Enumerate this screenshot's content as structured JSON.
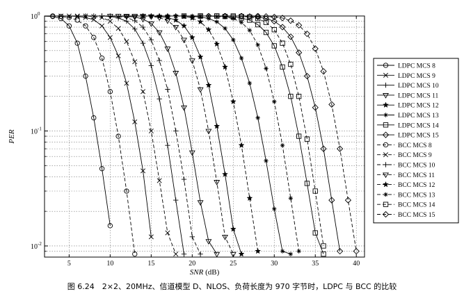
{
  "caption": "图 6.24　2×2、20MHz、信道模型 D、NLOS、负荷长度为 970 字节时，LDPC 与 BCC 的比较",
  "chart_data": {
    "type": "line",
    "xlabel": "SNR (dB)",
    "ylabel": "PER",
    "xlim": [
      2,
      41
    ],
    "ylim": [
      0.008,
      1
    ],
    "yscale": "log",
    "xticks": [
      5,
      10,
      15,
      20,
      25,
      30,
      35,
      40
    ],
    "xtick_labels": [
      "5",
      "10",
      "15",
      "20",
      "25",
      "30",
      "35",
      "40"
    ],
    "yticks": [
      0.01,
      0.1,
      1
    ],
    "ytick_labels": [
      "10",
      "10",
      "10"
    ],
    "ytick_exponents": [
      "-2",
      "-1",
      "0"
    ],
    "grid": true,
    "legend": "right",
    "series": [
      {
        "name": "LDPC MCS 8",
        "marker": "circle",
        "dash": "solid",
        "x": [
          1.5,
          3,
          4,
          5,
          6,
          7,
          8,
          9,
          10
        ],
        "y": [
          1,
          0.99,
          0.95,
          0.82,
          0.58,
          0.3,
          0.13,
          0.047,
          0.015
        ]
      },
      {
        "name": "LDPC MCS 9",
        "marker": "x",
        "dash": "solid",
        "x": [
          4,
          5,
          6,
          7,
          8,
          9,
          10,
          11,
          12,
          13,
          14,
          15
        ],
        "y": [
          1,
          1,
          0.99,
          0.97,
          0.93,
          0.82,
          0.65,
          0.45,
          0.26,
          0.12,
          0.045,
          0.012
        ]
      },
      {
        "name": "LDPC MCS 10",
        "marker": "plus",
        "dash": "solid",
        "x": [
          7,
          8,
          9,
          10,
          11,
          12,
          13,
          14,
          15,
          16,
          17,
          18,
          19
        ],
        "y": [
          1,
          1,
          1,
          0.99,
          0.96,
          0.9,
          0.77,
          0.58,
          0.37,
          0.19,
          0.075,
          0.025,
          0.0085
        ]
      },
      {
        "name": "LDPC MCS 11",
        "marker": "tri-down",
        "dash": "solid",
        "x": [
          10,
          11,
          12,
          13,
          14,
          15,
          16,
          17,
          18,
          19,
          20,
          21,
          22,
          23
        ],
        "y": [
          1,
          1,
          0.99,
          0.98,
          0.94,
          0.86,
          0.72,
          0.52,
          0.32,
          0.16,
          0.065,
          0.024,
          0.011,
          0.0085
        ]
      },
      {
        "name": "LDPC MCS 12",
        "marker": "star",
        "dash": "solid",
        "x": [
          14,
          15,
          16,
          17,
          18,
          19,
          20,
          21,
          22,
          23,
          24,
          25,
          26
        ],
        "y": [
          1,
          1,
          0.99,
          0.97,
          0.92,
          0.82,
          0.65,
          0.44,
          0.25,
          0.11,
          0.042,
          0.014,
          0.0085
        ]
      },
      {
        "name": "LDPC MCS 13",
        "marker": "asterisk",
        "dash": "solid",
        "x": [
          17,
          18,
          19,
          20,
          21,
          22,
          23,
          24,
          25,
          26,
          27,
          28,
          29,
          30,
          31,
          32
        ],
        "y": [
          1,
          1,
          1,
          0.99,
          0.98,
          0.95,
          0.89,
          0.78,
          0.62,
          0.43,
          0.26,
          0.13,
          0.055,
          0.021,
          0.009,
          0.0085
        ]
      },
      {
        "name": "LDPC MCS 14",
        "marker": "square",
        "dash": "solid",
        "x": [
          19,
          21,
          23,
          24,
          25,
          26,
          27,
          28,
          29,
          30,
          31,
          32,
          33,
          34,
          35,
          36
        ],
        "y": [
          1,
          1,
          1,
          0.99,
          0.98,
          0.96,
          0.92,
          0.84,
          0.72,
          0.55,
          0.36,
          0.2,
          0.09,
          0.035,
          0.013,
          0.0085
        ]
      },
      {
        "name": "LDPC MCS 15",
        "marker": "diamond",
        "dash": "solid",
        "x": [
          22,
          24,
          26,
          27,
          28,
          29,
          30,
          31,
          32,
          33,
          34,
          35,
          36,
          37,
          38
        ],
        "y": [
          1,
          1,
          1,
          0.99,
          0.98,
          0.95,
          0.9,
          0.8,
          0.66,
          0.48,
          0.3,
          0.16,
          0.07,
          0.025,
          0.009
        ]
      },
      {
        "name": "BCC MCS 8",
        "marker": "circle",
        "dash": "dashed",
        "x": [
          1.5,
          3,
          4,
          5,
          6,
          7,
          8,
          9,
          10,
          11,
          12,
          13
        ],
        "y": [
          1,
          1,
          0.99,
          0.97,
          0.92,
          0.82,
          0.65,
          0.43,
          0.22,
          0.09,
          0.03,
          0.0085
        ]
      },
      {
        "name": "BCC MCS 9",
        "marker": "x",
        "dash": "dashed",
        "x": [
          6,
          7,
          8,
          9,
          10,
          11,
          12,
          13,
          14,
          15,
          16,
          17,
          18
        ],
        "y": [
          1,
          1,
          0.99,
          0.97,
          0.9,
          0.78,
          0.6,
          0.4,
          0.22,
          0.1,
          0.037,
          0.013,
          0.0085
        ]
      },
      {
        "name": "BCC MCS 10",
        "marker": "plus",
        "dash": "dashed",
        "x": [
          9,
          10,
          11,
          12,
          13,
          14,
          15,
          16,
          17,
          18,
          19,
          20,
          21
        ],
        "y": [
          1,
          1,
          0.99,
          0.97,
          0.91,
          0.8,
          0.62,
          0.41,
          0.23,
          0.1,
          0.038,
          0.012,
          0.0085
        ]
      },
      {
        "name": "BCC MCS 11",
        "marker": "tri-down",
        "dash": "dashed",
        "x": [
          12,
          13,
          14,
          15,
          16,
          17,
          18,
          19,
          20,
          21,
          22,
          23,
          24,
          25
        ],
        "y": [
          1,
          1,
          1,
          0.99,
          0.97,
          0.91,
          0.8,
          0.62,
          0.41,
          0.23,
          0.1,
          0.036,
          0.012,
          0.0085
        ]
      },
      {
        "name": "BCC MCS 12",
        "marker": "star",
        "dash": "dashed",
        "x": [
          16,
          17,
          18,
          19,
          20,
          21,
          22,
          23,
          24,
          25,
          26,
          27,
          28
        ],
        "y": [
          1,
          1,
          1,
          0.99,
          0.96,
          0.89,
          0.76,
          0.57,
          0.36,
          0.18,
          0.075,
          0.026,
          0.009
        ]
      },
      {
        "name": "BCC MCS 13",
        "marker": "asterisk",
        "dash": "dashed",
        "x": [
          19,
          20,
          21,
          22,
          23,
          24,
          25,
          26,
          27,
          28,
          29,
          30,
          31,
          32,
          33
        ],
        "y": [
          1,
          1,
          1,
          1,
          0.99,
          0.98,
          0.95,
          0.88,
          0.75,
          0.56,
          0.35,
          0.18,
          0.075,
          0.026,
          0.009
        ]
      },
      {
        "name": "BCC MCS 14",
        "marker": "square",
        "dash": "dashed",
        "x": [
          21,
          23,
          25,
          26,
          27,
          28,
          29,
          30,
          31,
          32,
          33,
          34,
          35,
          36
        ],
        "y": [
          1,
          1,
          1,
          0.99,
          0.98,
          0.95,
          0.88,
          0.76,
          0.58,
          0.38,
          0.2,
          0.085,
          0.03,
          0.01
        ]
      },
      {
        "name": "BCC MCS 15",
        "marker": "diamond",
        "dash": "dashed",
        "x": [
          24,
          26,
          28,
          29,
          30,
          31,
          32,
          33,
          34,
          35,
          36,
          37,
          38,
          39,
          40
        ],
        "y": [
          1,
          1,
          1,
          0.99,
          0.98,
          0.96,
          0.91,
          0.83,
          0.7,
          0.52,
          0.33,
          0.17,
          0.07,
          0.025,
          0.009
        ]
      }
    ]
  }
}
